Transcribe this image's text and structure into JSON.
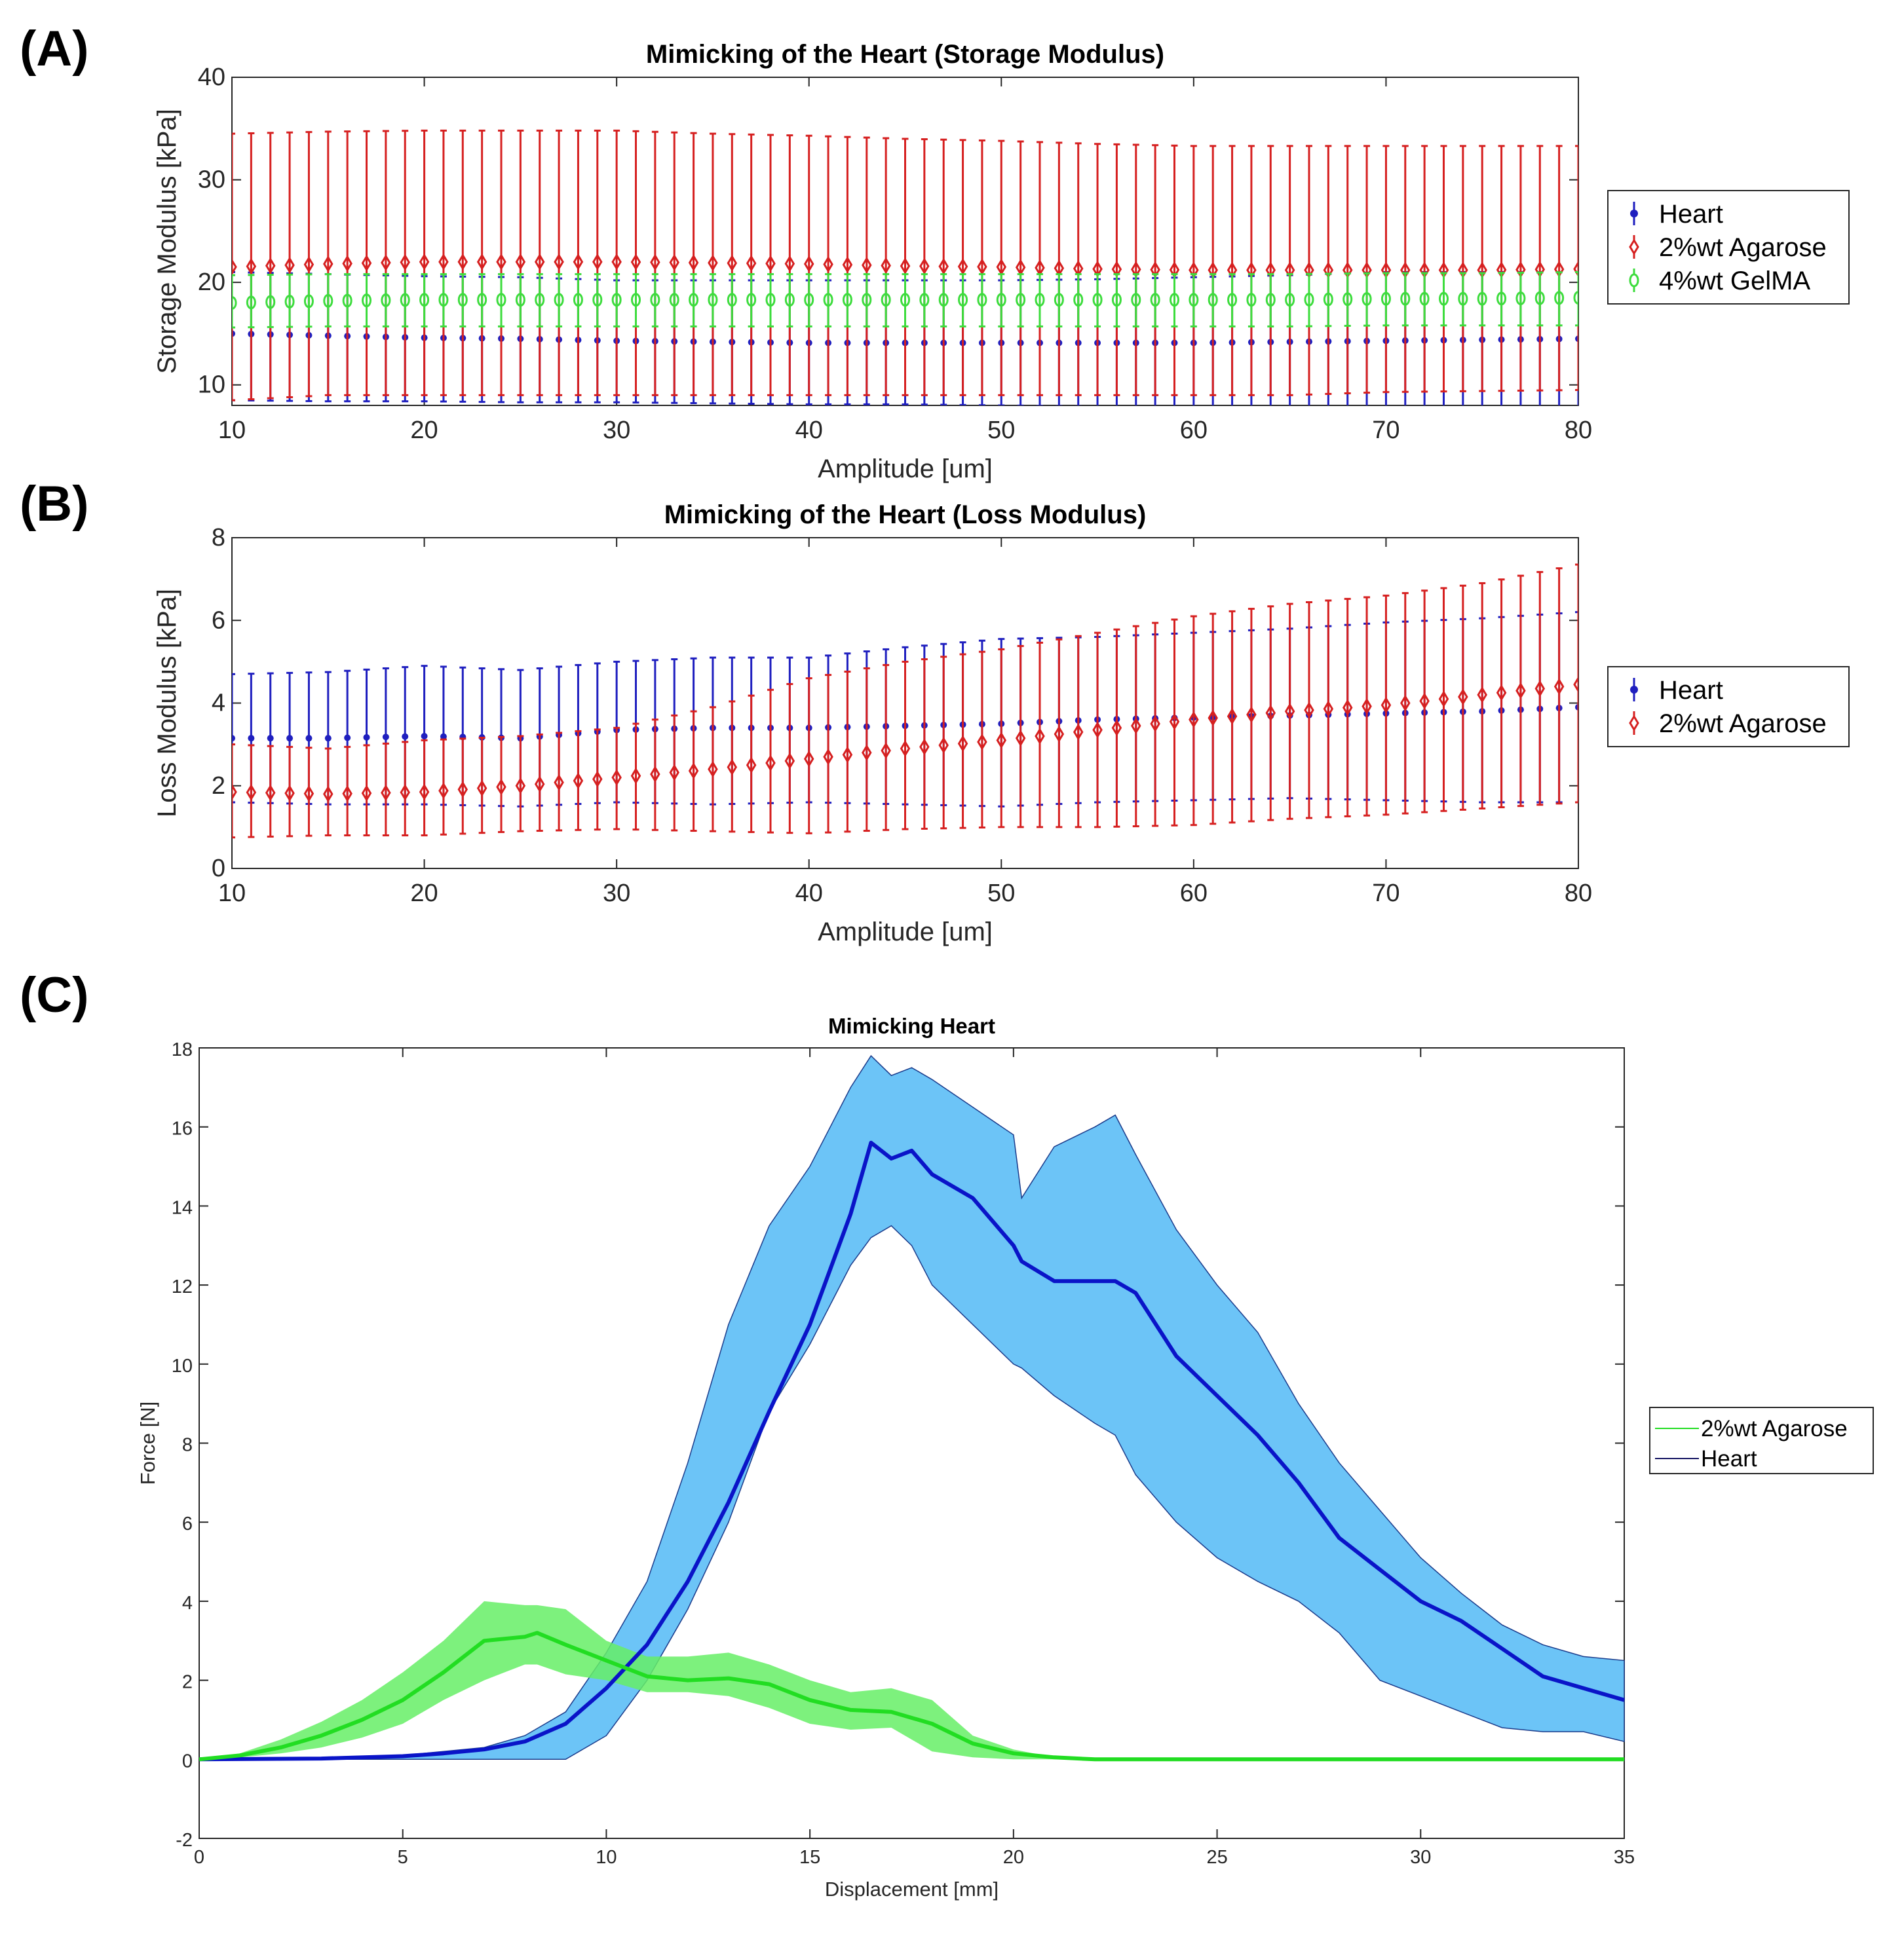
{
  "panel_labels": [
    "(A)",
    "(B)",
    "(C)"
  ],
  "chart_data": [
    {
      "type": "scatter",
      "error_bars": true,
      "title": "Mimicking of the Heart (Storage Modulus)",
      "xlabel": "Amplitude [um]",
      "ylabel": "Storage Modulus [kPa]",
      "xlim": [
        10,
        80
      ],
      "ylim": [
        8,
        40
      ],
      "xticks": [
        10,
        20,
        30,
        40,
        50,
        60,
        70,
        80
      ],
      "yticks": [
        10,
        20,
        30,
        40
      ],
      "legend_position": "outside-right",
      "sample_x": [
        10,
        15,
        20,
        25,
        30,
        35,
        40,
        45,
        50,
        55,
        60,
        65,
        70,
        75,
        80
      ],
      "marker_step": 1,
      "series": [
        {
          "name": "Heart",
          "color": "#1f1fbf",
          "marker": "dot",
          "mean": [
            15.0,
            14.8,
            14.6,
            14.5,
            14.3,
            14.2,
            14.1,
            14.1,
            14.1,
            14.1,
            14.1,
            14.2,
            14.3,
            14.4,
            14.5
          ],
          "upper": [
            21.0,
            20.8,
            20.6,
            20.5,
            20.2,
            20.2,
            20.2,
            20.2,
            20.2,
            20.3,
            20.5,
            20.7,
            21.0,
            21.0,
            21.0
          ],
          "lower": [
            8.5,
            8.4,
            8.4,
            8.3,
            8.3,
            8.2,
            8.1,
            8.1,
            8.0,
            7.9,
            7.8,
            7.7,
            7.7,
            7.6,
            7.5
          ]
        },
        {
          "name": "2%wt Agarose",
          "color": "#d62020",
          "marker": "diamond",
          "mean": [
            21.5,
            21.8,
            22.0,
            22.0,
            22.0,
            21.9,
            21.8,
            21.6,
            21.5,
            21.3,
            21.2,
            21.2,
            21.2,
            21.2,
            21.3
          ],
          "upper": [
            34.5,
            34.7,
            34.8,
            34.8,
            34.8,
            34.5,
            34.3,
            34.0,
            33.8,
            33.5,
            33.3,
            33.3,
            33.3,
            33.3,
            33.3
          ],
          "lower": [
            8.5,
            9.0,
            9.0,
            9.0,
            9.0,
            9.0,
            9.0,
            9.0,
            9.0,
            9.0,
            9.0,
            9.0,
            9.3,
            9.4,
            9.5
          ]
        },
        {
          "name": "4%wt GelMA",
          "color": "#3ddc3d",
          "marker": "circle",
          "mean": [
            18.0,
            18.2,
            18.3,
            18.3,
            18.3,
            18.3,
            18.3,
            18.3,
            18.3,
            18.3,
            18.3,
            18.3,
            18.4,
            18.4,
            18.5
          ],
          "upper": [
            20.7,
            20.8,
            20.8,
            20.8,
            20.8,
            20.8,
            20.8,
            20.8,
            20.8,
            20.8,
            20.8,
            20.8,
            20.9,
            20.9,
            21.0
          ],
          "lower": [
            15.6,
            15.7,
            15.7,
            15.7,
            15.7,
            15.7,
            15.7,
            15.7,
            15.7,
            15.7,
            15.7,
            15.7,
            15.8,
            15.8,
            15.8
          ]
        }
      ]
    },
    {
      "type": "scatter",
      "error_bars": true,
      "title": "Mimicking of the Heart (Loss Modulus)",
      "xlabel": "Amplitude [um]",
      "ylabel": "Loss Modulus [kPa]",
      "xlim": [
        10,
        80
      ],
      "ylim": [
        0,
        8
      ],
      "xticks": [
        10,
        20,
        30,
        40,
        50,
        60,
        70,
        80
      ],
      "yticks": [
        0,
        2,
        4,
        6,
        8
      ],
      "legend_position": "outside-right",
      "sample_x": [
        10,
        15,
        20,
        25,
        30,
        35,
        40,
        45,
        50,
        55,
        60,
        65,
        70,
        75,
        80
      ],
      "marker_step": 1,
      "series": [
        {
          "name": "Heart",
          "color": "#1f1fbf",
          "marker": "dot",
          "mean": [
            3.15,
            3.15,
            3.2,
            3.15,
            3.35,
            3.4,
            3.4,
            3.45,
            3.5,
            3.6,
            3.65,
            3.7,
            3.75,
            3.8,
            3.9
          ],
          "upper": [
            4.7,
            4.75,
            4.9,
            4.8,
            5.0,
            5.1,
            5.1,
            5.35,
            5.55,
            5.6,
            5.7,
            5.8,
            5.95,
            6.05,
            6.2
          ],
          "lower": [
            1.6,
            1.55,
            1.55,
            1.5,
            1.6,
            1.55,
            1.6,
            1.55,
            1.5,
            1.6,
            1.65,
            1.7,
            1.65,
            1.6,
            1.6
          ]
        },
        {
          "name": "2%wt Agarose",
          "color": "#d62020",
          "marker": "diamond",
          "mean": [
            1.85,
            1.8,
            1.85,
            2.0,
            2.2,
            2.4,
            2.65,
            2.9,
            3.1,
            3.35,
            3.6,
            3.8,
            3.95,
            4.2,
            4.45
          ],
          "upper": [
            3.0,
            2.9,
            3.1,
            3.2,
            3.4,
            3.9,
            4.6,
            5.0,
            5.3,
            5.7,
            6.1,
            6.4,
            6.6,
            6.9,
            7.35
          ],
          "lower": [
            0.75,
            0.8,
            0.8,
            0.9,
            0.95,
            0.9,
            0.85,
            0.95,
            1.0,
            1.0,
            1.05,
            1.2,
            1.3,
            1.45,
            1.6
          ]
        }
      ]
    },
    {
      "type": "area",
      "title": "Mimicking Heart",
      "xlabel": "Displacement [mm]",
      "ylabel": "Force [N]",
      "xlim": [
        0,
        35
      ],
      "ylim": [
        -2,
        18
      ],
      "xticks": [
        0,
        5,
        10,
        15,
        20,
        25,
        30,
        35
      ],
      "yticks": [
        -2,
        0,
        2,
        4,
        6,
        8,
        10,
        12,
        14,
        16,
        18
      ],
      "legend_position": "outside-right",
      "series": [
        {
          "name": "2%wt Agarose",
          "color": "#22dd22",
          "band_color": "#66ee66",
          "x": [
            0,
            1,
            2,
            3,
            4,
            5,
            6,
            7,
            8,
            8.3,
            9,
            10,
            11,
            12,
            13,
            14,
            15,
            16,
            17,
            18,
            19,
            20,
            21,
            22,
            35
          ],
          "mean": [
            0,
            0.1,
            0.3,
            0.6,
            1.0,
            1.5,
            2.2,
            3.0,
            3.1,
            3.2,
            2.9,
            2.5,
            2.1,
            2.0,
            2.05,
            1.9,
            1.5,
            1.25,
            1.2,
            0.9,
            0.4,
            0.15,
            0.05,
            0,
            0
          ],
          "upper": [
            0,
            0.15,
            0.5,
            0.95,
            1.5,
            2.2,
            3.0,
            4.0,
            3.9,
            3.9,
            3.8,
            3.0,
            2.6,
            2.6,
            2.7,
            2.4,
            2.0,
            1.7,
            1.8,
            1.5,
            0.6,
            0.25,
            0.05,
            0,
            0
          ],
          "lower": [
            0,
            0.05,
            0.15,
            0.3,
            0.55,
            0.9,
            1.5,
            2.0,
            2.4,
            2.4,
            2.15,
            2.0,
            1.7,
            1.7,
            1.6,
            1.3,
            0.9,
            0.75,
            0.8,
            0.2,
            0.05,
            0,
            0,
            0,
            0
          ]
        },
        {
          "name": "Heart",
          "color": "#0a14c8",
          "band_color": "#6cc4f7",
          "x": [
            0,
            3,
            5,
            6,
            7,
            8,
            9,
            10,
            11,
            12,
            13,
            14,
            15,
            16,
            16.5,
            17,
            17.5,
            18,
            19,
            20,
            20.2,
            21,
            22,
            22.5,
            23,
            24,
            25,
            26,
            27,
            28,
            29,
            30,
            31,
            32,
            33,
            34,
            35
          ],
          "mean": [
            0,
            0.02,
            0.08,
            0.15,
            0.25,
            0.45,
            0.9,
            1.8,
            2.9,
            4.5,
            6.5,
            8.8,
            11,
            13.8,
            15.6,
            15.2,
            15.4,
            14.8,
            14.2,
            13,
            12.6,
            12.1,
            12.1,
            12.1,
            11.8,
            10.2,
            9.2,
            8.2,
            7.0,
            5.6,
            4.8,
            4.0,
            3.5,
            2.8,
            2.1,
            1.8,
            1.5
          ],
          "upper": [
            0,
            0.05,
            0.1,
            0.2,
            0.3,
            0.6,
            1.2,
            2.7,
            4.5,
            7.5,
            11,
            13.5,
            15,
            17,
            17.8,
            17.3,
            17.5,
            17.2,
            16.5,
            15.8,
            14.2,
            15.5,
            16,
            16.3,
            15.3,
            13.4,
            12,
            10.8,
            9,
            7.5,
            6.3,
            5.1,
            4.2,
            3.4,
            2.9,
            2.6,
            2.5
          ],
          "lower": [
            0,
            0,
            0,
            0,
            0,
            0,
            0,
            0.6,
            2,
            3.8,
            6,
            8.8,
            10.5,
            12.5,
            13.2,
            13.5,
            13,
            12,
            11,
            10,
            9.9,
            9.2,
            8.5,
            8.2,
            7.2,
            6,
            5.1,
            4.5,
            4,
            3.2,
            2,
            1.6,
            1.2,
            0.8,
            0.7,
            0.7,
            0.45
          ]
        }
      ]
    }
  ]
}
